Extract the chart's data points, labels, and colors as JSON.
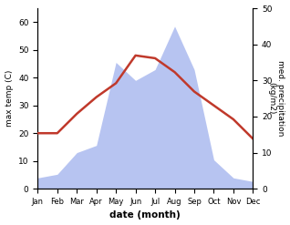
{
  "months": [
    "Jan",
    "Feb",
    "Mar",
    "Apr",
    "May",
    "Jun",
    "Jul",
    "Aug",
    "Sep",
    "Oct",
    "Nov",
    "Dec"
  ],
  "temperature": [
    20,
    20,
    27,
    33,
    38,
    48,
    47,
    42,
    35,
    30,
    25,
    18
  ],
  "precipitation": [
    3,
    4,
    10,
    12,
    35,
    30,
    33,
    45,
    33,
    8,
    3,
    2
  ],
  "temp_color": "#c0392b",
  "precip_color": "#b0bef0",
  "xlabel": "date (month)",
  "ylabel_left": "max temp (C)",
  "ylabel_right": "med. precipitation\n(kg/m2)",
  "ylim_left": [
    0,
    65
  ],
  "ylim_right": [
    0,
    50
  ],
  "yticks_left": [
    0,
    10,
    20,
    30,
    40,
    50,
    60
  ],
  "yticks_right": [
    0,
    10,
    20,
    30,
    40,
    50
  ],
  "bg_color": "#ffffff",
  "temp_linewidth": 1.8
}
